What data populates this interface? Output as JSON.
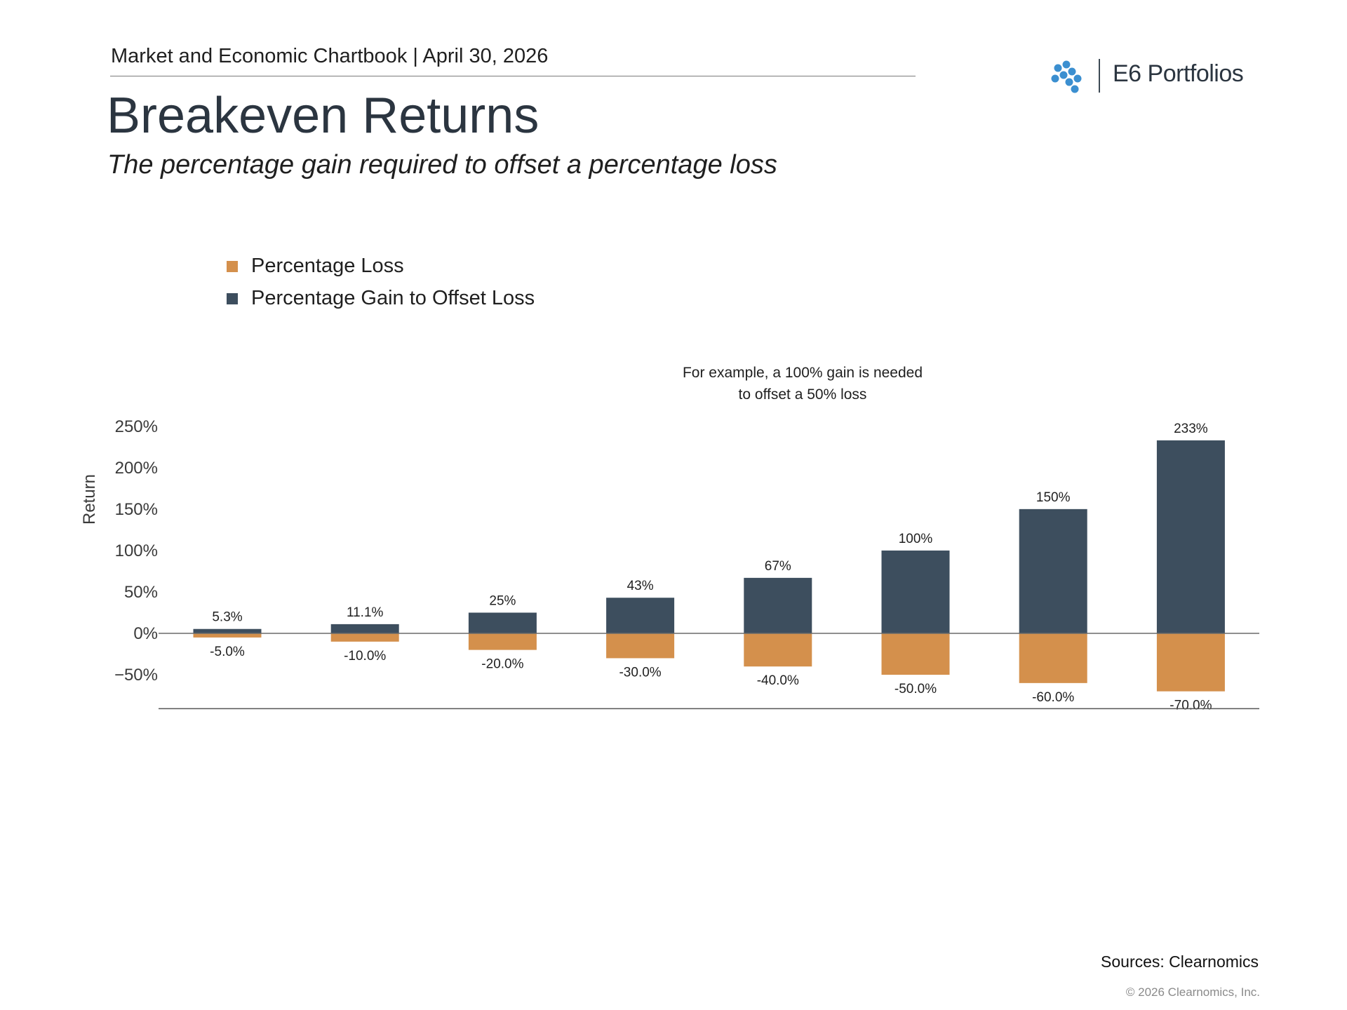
{
  "header": {
    "chartbook": "Market and Economic Chartbook",
    "date": "April 30, 2026"
  },
  "logo": {
    "name": "E6 Portfolios",
    "mark_color": "#3b8fd0"
  },
  "title": "Breakeven Returns",
  "subtitle": "The percentage gain required to offset a percentage loss",
  "chart_data": {
    "type": "bar",
    "ylabel": "Return",
    "xlabel": "",
    "ylim": [
      -85,
      250
    ],
    "yticks": [
      250,
      200,
      150,
      100,
      50,
      0,
      -50
    ],
    "ytick_labels": [
      "250%",
      "200%",
      "150%",
      "100%",
      "50%",
      "0%",
      "−50%"
    ],
    "grid": false,
    "legend_position": "top-left",
    "series": [
      {
        "name": "Percentage Loss",
        "color": "#d4904c",
        "values": [
          -5.0,
          -10.0,
          -20.0,
          -30.0,
          -40.0,
          -50.0,
          -60.0,
          -70.0
        ],
        "labels": [
          "-5.0%",
          "-10.0%",
          "-20.0%",
          "-30.0%",
          "-40.0%",
          "-50.0%",
          "-60.0%",
          "-70.0%"
        ]
      },
      {
        "name": "Percentage Gain to Offset Loss",
        "color": "#3d4e5e",
        "values": [
          5.3,
          11.1,
          25,
          43,
          67,
          100,
          150,
          233
        ],
        "labels": [
          "5.3%",
          "11.1%",
          "25%",
          "43%",
          "67%",
          "100%",
          "150%",
          "233%"
        ]
      }
    ],
    "annotation": {
      "line1": "For example, a 100% gain is needed",
      "line2": "to offset a 50% loss"
    }
  },
  "footer": {
    "sources": "Sources: Clearnomics",
    "copyright": "© 2026 Clearnomics, Inc."
  }
}
